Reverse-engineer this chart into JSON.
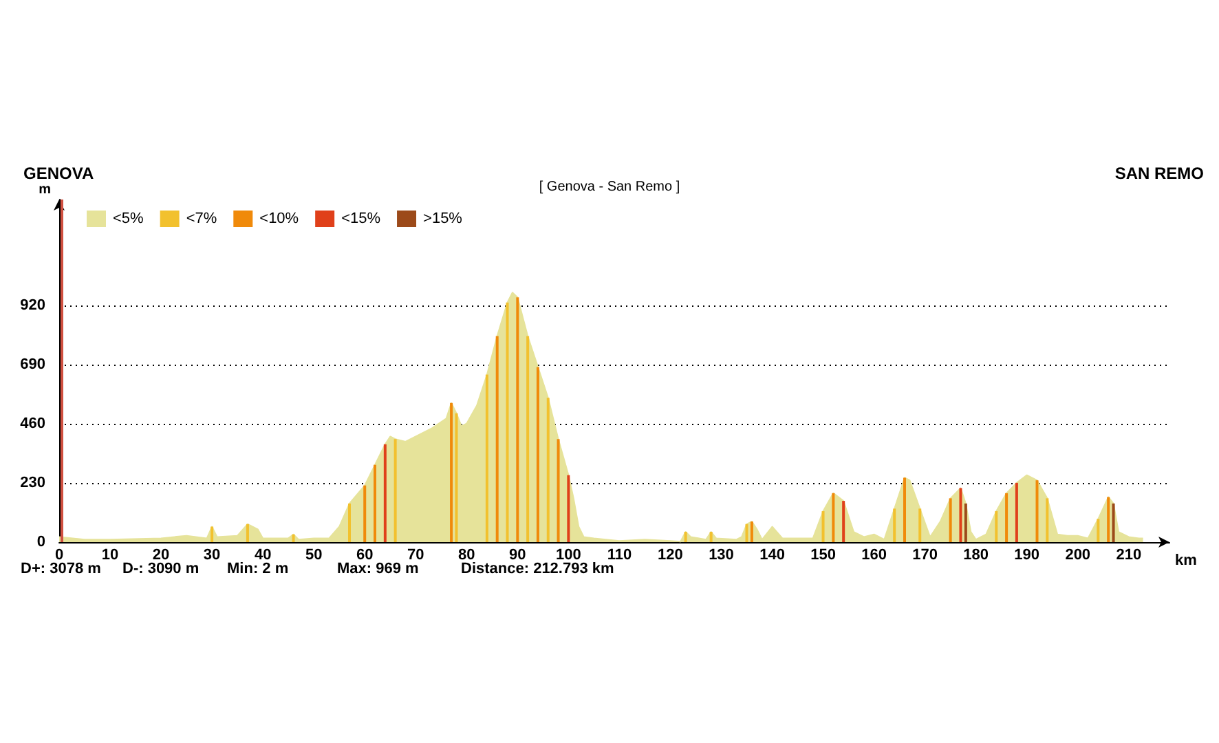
{
  "chart_data": {
    "type": "area",
    "title": "[ Genova - San Remo ]",
    "xlabel": "km",
    "ylabel": "m",
    "annotations": [
      "GENOVA",
      "SAN REMO",
      "D+: 3078 m",
      "D-: 3090 m",
      "Min: 2 m",
      "Max: 969 m",
      "Distance: 212.793 km"
    ],
    "x": [
      0,
      5,
      10,
      20,
      25,
      29,
      30,
      31,
      35,
      37,
      39,
      40,
      45,
      46,
      47,
      50,
      53,
      55,
      57,
      60,
      62,
      64,
      65,
      66,
      68,
      70,
      73,
      76,
      77,
      78,
      79,
      80,
      82,
      84,
      86,
      88,
      89,
      90,
      92,
      94,
      96,
      98,
      100,
      101,
      102,
      103,
      105,
      110,
      115,
      120,
      122,
      123,
      124,
      127,
      128,
      129,
      133,
      134,
      135,
      136,
      137,
      138,
      140,
      142,
      148,
      150,
      152,
      154,
      156,
      158,
      160,
      162,
      164,
      166,
      167,
      169,
      171,
      173,
      175,
      177,
      178,
      179,
      180,
      182,
      184,
      186,
      188,
      190,
      192,
      194,
      196,
      198,
      200,
      202,
      204,
      206,
      207,
      208,
      210,
      212,
      212.8
    ],
    "series": [
      {
        "name": "<5%",
        "color": "#e6e39a",
        "values": [
          20,
          10,
          10,
          15,
          25,
          15,
          60,
          20,
          25,
          70,
          50,
          15,
          15,
          30,
          10,
          15,
          15,
          60,
          150,
          220,
          300,
          380,
          410,
          400,
          390,
          410,
          440,
          480,
          540,
          500,
          450,
          460,
          530,
          650,
          800,
          930,
          969,
          950,
          800,
          680,
          560,
          400,
          260,
          170,
          60,
          20,
          15,
          5,
          10,
          5,
          2,
          40,
          20,
          10,
          40,
          15,
          10,
          20,
          70,
          80,
          50,
          10,
          60,
          15,
          15,
          120,
          190,
          160,
          40,
          20,
          30,
          10,
          130,
          250,
          240,
          130,
          20,
          80,
          170,
          210,
          150,
          40,
          10,
          30,
          120,
          190,
          230,
          260,
          240,
          170,
          30,
          25,
          25,
          15,
          90,
          175,
          150,
          40,
          20,
          15,
          15
        ]
      },
      {
        "name": "<7%",
        "color": "#f2c12e",
        "type": "bar",
        "x": [
          30,
          37,
          46,
          57,
          66,
          78,
          84,
          88,
          92,
          96,
          123,
          128,
          135,
          150,
          164,
          169,
          184,
          194,
          204
        ],
        "values": [
          60,
          70,
          30,
          150,
          400,
          500,
          650,
          930,
          800,
          560,
          40,
          40,
          70,
          120,
          130,
          130,
          120,
          170,
          90
        ]
      },
      {
        "name": "<10%",
        "color": "#f08a0a",
        "type": "bar",
        "x": [
          60,
          62,
          77,
          86,
          90,
          94,
          98,
          136,
          152,
          166,
          175,
          186,
          192,
          206
        ],
        "values": [
          220,
          300,
          540,
          800,
          950,
          680,
          400,
          80,
          190,
          250,
          170,
          190,
          240,
          175
        ]
      },
      {
        "name": "<15%",
        "color": "#e0401a",
        "type": "bar",
        "x": [
          64,
          100,
          154,
          177,
          188
        ],
        "values": [
          380,
          260,
          160,
          210,
          230
        ]
      },
      {
        "name": ">15%",
        "color": "#9c4a1a",
        "type": "bar",
        "x": [
          178,
          207
        ],
        "values": [
          150,
          150
        ]
      }
    ],
    "xlim": [
      0,
      218
    ],
    "xticks": [
      0,
      10,
      20,
      30,
      40,
      50,
      60,
      70,
      80,
      90,
      100,
      110,
      120,
      130,
      140,
      150,
      160,
      170,
      180,
      190,
      200,
      210
    ],
    "ylim": [
      0,
      1330
    ],
    "yticks": [
      0,
      230,
      460,
      690,
      920
    ],
    "ref_lines": [
      {
        "axis": "x",
        "value": 0.5,
        "color": "#d05040"
      }
    ],
    "grid": "y",
    "legend": "top left",
    "marker": "none"
  }
}
